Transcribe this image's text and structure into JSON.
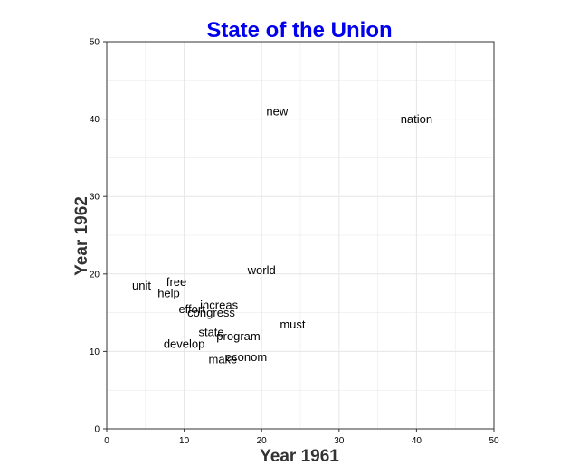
{
  "chart_data": {
    "type": "scatter",
    "title": "State of the Union",
    "xlabel": "Year 1961",
    "ylabel": "Year 1962",
    "xlim": [
      0,
      50
    ],
    "ylim": [
      0,
      50
    ],
    "xticks": [
      0,
      10,
      20,
      30,
      40,
      50
    ],
    "yticks": [
      0,
      10,
      20,
      30,
      40,
      50
    ],
    "grid": true,
    "colors": {
      "title": "#0000ee",
      "text": "#000000",
      "grid": "#e6e6e6",
      "axis": "#333333"
    },
    "points": [
      {
        "label": "new",
        "x": 22,
        "y": 41
      },
      {
        "label": "nation",
        "x": 40,
        "y": 40
      },
      {
        "label": "world",
        "x": 20,
        "y": 20.5
      },
      {
        "label": "free",
        "x": 9,
        "y": 19
      },
      {
        "label": "unit",
        "x": 4.5,
        "y": 18.5
      },
      {
        "label": "help",
        "x": 8,
        "y": 17.5
      },
      {
        "label": "increas",
        "x": 14.5,
        "y": 16
      },
      {
        "label": "effort",
        "x": 11,
        "y": 15.5
      },
      {
        "label": "congress",
        "x": 13.5,
        "y": 15
      },
      {
        "label": "must",
        "x": 24,
        "y": 13.5
      },
      {
        "label": "state",
        "x": 13.5,
        "y": 12.5
      },
      {
        "label": "program",
        "x": 17,
        "y": 12
      },
      {
        "label": "develop",
        "x": 10,
        "y": 11
      },
      {
        "label": "make",
        "x": 15,
        "y": 9
      },
      {
        "label": "econom",
        "x": 18,
        "y": 9.3
      }
    ]
  }
}
